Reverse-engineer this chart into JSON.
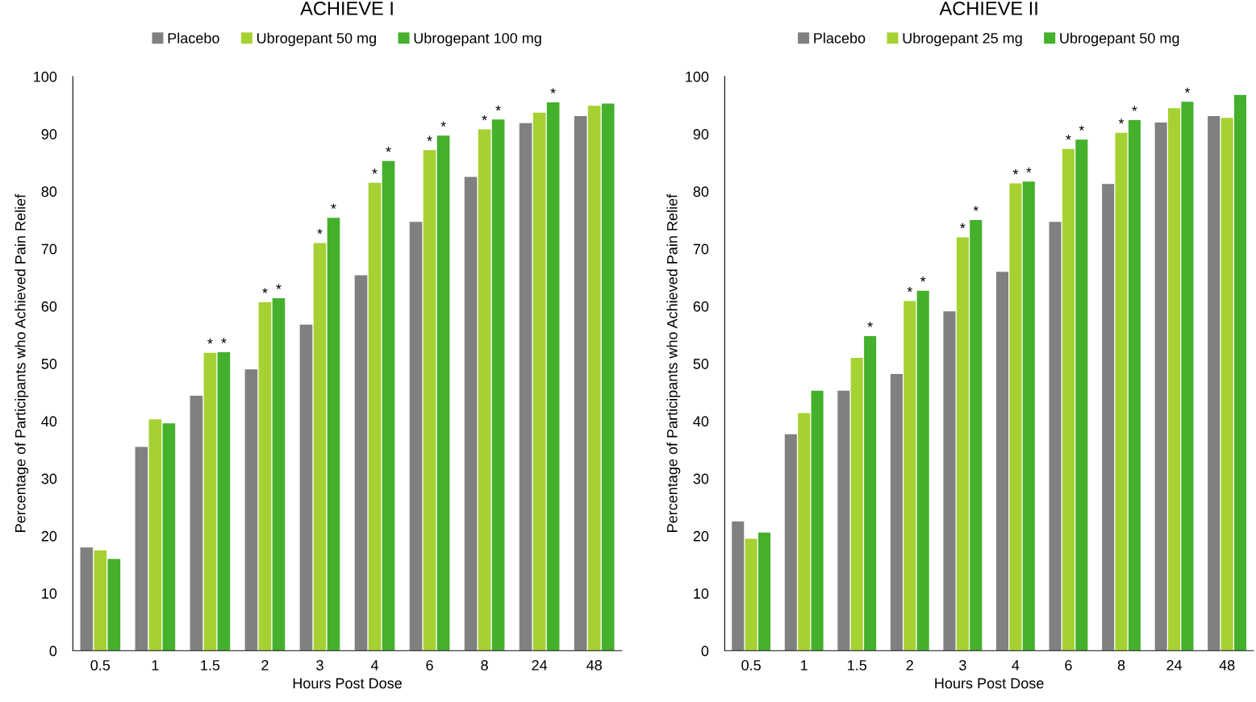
{
  "chart_data": [
    {
      "type": "bar",
      "title": "ACHIEVE I",
      "xlabel": "Hours Post Dose",
      "ylabel": "Percentage of Participants who Achieved Pain Relief",
      "categories": [
        "0.5",
        "1",
        "1.5",
        "2",
        "3",
        "4",
        "6",
        "8",
        "24",
        "48"
      ],
      "ylim": [
        0,
        100
      ],
      "yticks": [
        0,
        10,
        20,
        30,
        40,
        50,
        60,
        70,
        80,
        90,
        100
      ],
      "grid": false,
      "legend": "top",
      "series": [
        {
          "name": "Placebo",
          "color": "#808080",
          "values": [
            18,
            35.5,
            44.4,
            49,
            56.8,
            65.4,
            74.7,
            82.5,
            91.9,
            93.1
          ]
        },
        {
          "name": "Ubrogepant 50 mg",
          "color": "#a6d132",
          "values": [
            17.5,
            40.3,
            51.9,
            60.7,
            71,
            81.5,
            87.2,
            90.8,
            93.7,
            94.9
          ],
          "value_labels": [
            null,
            null,
            "*",
            "*",
            "*",
            "*",
            "*",
            "*",
            null,
            null
          ]
        },
        {
          "name": "Ubrogepant 100 mg",
          "color": "#44b02c",
          "values": [
            16,
            39.6,
            52,
            61.4,
            75.4,
            85.3,
            89.7,
            92.5,
            95.5,
            95.3
          ],
          "value_labels": [
            null,
            null,
            "*",
            "*",
            "*",
            "*",
            "*",
            "*",
            "*",
            null
          ]
        }
      ]
    },
    {
      "type": "bar",
      "title": "ACHIEVE II",
      "xlabel": "Hours Post Dose",
      "ylabel": "Percentage of Participants who Achieved Pain Relief",
      "categories": [
        "0.5",
        "1",
        "1.5",
        "2",
        "3",
        "4",
        "6",
        "8",
        "24",
        "48"
      ],
      "ylim": [
        0,
        100
      ],
      "yticks": [
        0,
        10,
        20,
        30,
        40,
        50,
        60,
        70,
        80,
        90,
        100
      ],
      "grid": false,
      "legend": "top",
      "series": [
        {
          "name": "Placebo",
          "color": "#808080",
          "values": [
            22.5,
            37.7,
            45.3,
            48.2,
            59.1,
            66,
            74.7,
            81.3,
            92,
            93.1
          ]
        },
        {
          "name": "Ubrogepant 25 mg",
          "color": "#a6d132",
          "values": [
            19.5,
            41.4,
            51,
            60.9,
            72,
            81.4,
            87.4,
            90.2,
            94.5,
            92.8
          ],
          "value_labels": [
            null,
            null,
            null,
            "*",
            "*",
            "*",
            "*",
            "*",
            null,
            null
          ]
        },
        {
          "name": "Ubrogepant 50 mg",
          "color": "#44b02c",
          "values": [
            20.6,
            45.3,
            54.8,
            62.7,
            75,
            81.7,
            89,
            92.4,
            95.6,
            96.8
          ],
          "value_labels": [
            null,
            null,
            "*",
            "*",
            "*",
            "*",
            "*",
            "*",
            "*",
            null
          ]
        }
      ]
    }
  ]
}
